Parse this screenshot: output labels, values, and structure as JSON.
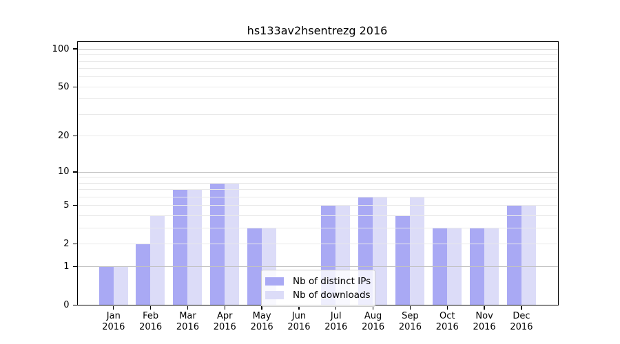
{
  "title": "hs133av2hsentrezg 2016",
  "colors": {
    "ips_bar": "#a9a9f4",
    "downloads_bar": "#dcdcf8",
    "grid_major": "#c2c2c2",
    "grid_minor": "#e9e9e9",
    "axis": "#000000"
  },
  "legend": {
    "items": [
      {
        "label": "Nb of distinct IPs",
        "color_key": "ips_bar"
      },
      {
        "label": "Nb of downloads",
        "color_key": "downloads_bar"
      }
    ]
  },
  "chart_data": {
    "type": "bar",
    "title": "hs133av2hsentrezg 2016",
    "categories": [
      "Jan",
      "Feb",
      "Mar",
      "Apr",
      "May",
      "Jun",
      "Jul",
      "Aug",
      "Sep",
      "Oct",
      "Nov",
      "Dec"
    ],
    "x_year": "2016",
    "series": [
      {
        "name": "Nb of distinct IPs",
        "color_key": "ips_bar",
        "values": [
          1,
          2,
          7,
          8,
          3,
          0,
          5,
          6,
          4,
          3,
          3,
          5
        ]
      },
      {
        "name": "Nb of downloads",
        "color_key": "downloads_bar",
        "values": [
          1,
          4,
          7,
          8,
          3,
          0,
          5,
          6,
          6,
          3,
          3,
          5
        ]
      }
    ],
    "xlabel": "",
    "ylabel": "",
    "yscale": "log10(value+1)",
    "ylim": [
      0,
      113
    ],
    "yticks": [
      0,
      1,
      2,
      5,
      10,
      20,
      50,
      100
    ],
    "yticks_major_grid": [
      1,
      10,
      100
    ],
    "yticks_minor_grid": [
      2,
      3,
      4,
      5,
      6,
      7,
      8,
      9,
      20,
      30,
      40,
      50,
      60,
      70,
      80,
      90
    ],
    "grid": true,
    "grid_over_bars": true,
    "legend_position": "lower-center"
  }
}
